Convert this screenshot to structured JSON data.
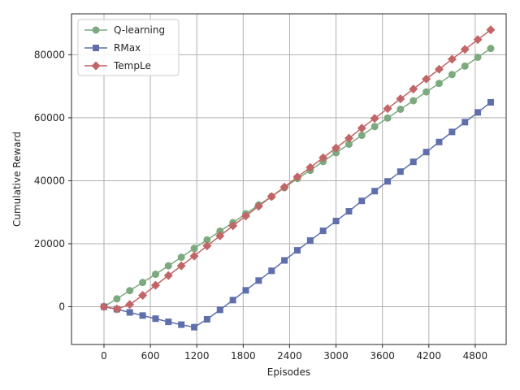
{
  "chart_data": {
    "type": "line",
    "xlabel": "Episodes",
    "ylabel": "Cumulative Reward",
    "xlim": [
      -420,
      5200
    ],
    "ylim": [
      -12000,
      93000
    ],
    "xticks": [
      0,
      600,
      1200,
      1800,
      2400,
      3000,
      3600,
      4200,
      4800
    ],
    "yticks": [
      0,
      20000,
      40000,
      60000,
      80000
    ],
    "grid": true,
    "legend_position": "top-left",
    "x": [
      0,
      167,
      333,
      500,
      667,
      833,
      1000,
      1167,
      1333,
      1500,
      1667,
      1833,
      2000,
      2167,
      2333,
      2500,
      2667,
      2833,
      3000,
      3167,
      3333,
      3500,
      3667,
      3833,
      4000,
      4167,
      4333,
      4500,
      4667,
      4833,
      5000
    ],
    "series": [
      {
        "name": "Q-learning",
        "color": "#7caa7e",
        "marker": "circle",
        "values": [
          0,
          2500,
          5100,
          7700,
          10300,
          13000,
          15700,
          18500,
          21200,
          24000,
          26700,
          29500,
          32300,
          35000,
          37800,
          40700,
          43300,
          46100,
          48900,
          51600,
          54400,
          57200,
          59900,
          62700,
          65400,
          68200,
          70900,
          73700,
          76400,
          79200,
          82000
        ]
      },
      {
        "name": "RMax",
        "color": "#5f6fac",
        "marker": "square",
        "values": [
          0,
          -800,
          -1800,
          -2800,
          -3800,
          -4800,
          -5700,
          -6500,
          -4000,
          -1000,
          2100,
          5200,
          8300,
          11400,
          14700,
          17900,
          21000,
          24100,
          27200,
          30300,
          33600,
          36700,
          39800,
          42900,
          46000,
          49100,
          52300,
          55500,
          58600,
          61700,
          64900
        ]
      },
      {
        "name": "TempLe",
        "color": "#c26566",
        "marker": "diamond",
        "values": [
          0,
          -700,
          700,
          3600,
          6800,
          9900,
          13000,
          16100,
          19300,
          22500,
          25700,
          28800,
          31900,
          35000,
          38000,
          41200,
          44200,
          47300,
          50400,
          53500,
          56700,
          59800,
          62900,
          66000,
          69100,
          72300,
          75400,
          78600,
          81700,
          84800,
          87900
        ]
      }
    ]
  }
}
